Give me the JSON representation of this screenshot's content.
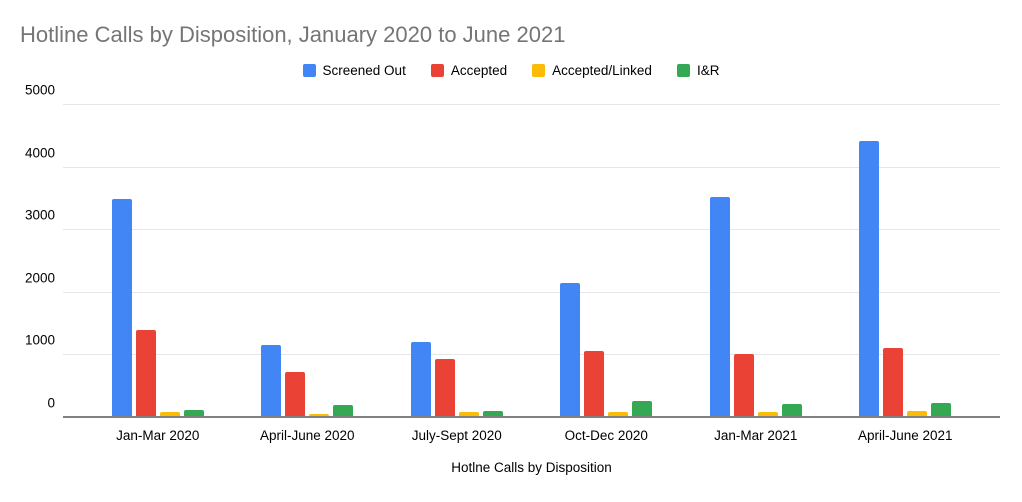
{
  "chart_data": {
    "type": "bar",
    "title": "Hotline Calls by Disposition, January 2020 to June 2021",
    "xlabel": "Hotlne Calls by Disposition",
    "ylabel": "",
    "ylim": [
      0,
      5000
    ],
    "yticks": [
      0,
      1000,
      2000,
      3000,
      4000,
      5000
    ],
    "grid": true,
    "legend_position": "top",
    "background": "#ffffff",
    "title_color": "#757575",
    "gridline_color": "#e6e6e6",
    "axis_line_color": "#808080",
    "categories": [
      "Jan-Mar 2020",
      "April-June 2020",
      "July-Sept 2020",
      "Oct-Dec 2020",
      "Jan-Mar 2021",
      "April-June 2021"
    ],
    "series": [
      {
        "name": "Screened Out",
        "color": "#4285F4",
        "values": [
          3500,
          1160,
          1220,
          2160,
          3530,
          4420
        ]
      },
      {
        "name": "Accepted",
        "color": "#EA4335",
        "values": [
          1400,
          740,
          940,
          1070,
          1020,
          1120
        ]
      },
      {
        "name": "Accepted/Linked",
        "color": "#FBBC04",
        "values": [
          100,
          70,
          90,
          100,
          95,
          110
        ]
      },
      {
        "name": "I&R",
        "color": "#34A853",
        "values": [
          130,
          200,
          110,
          270,
          230,
          240
        ]
      }
    ]
  }
}
